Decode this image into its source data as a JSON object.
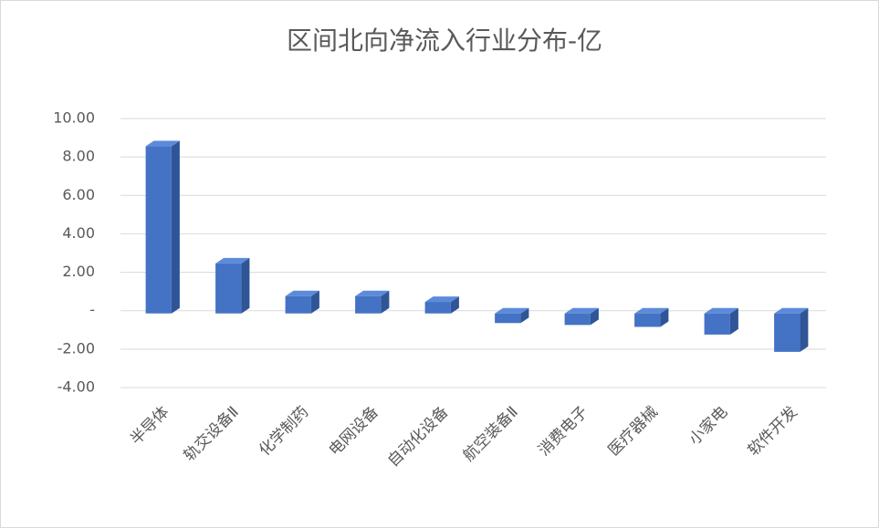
{
  "chart_data": {
    "type": "bar3d",
    "title": "区间北向净流入行业分布-亿",
    "categories": [
      "半导体",
      "轨交设备Ⅱ",
      "化学制药",
      "电网设备",
      "自动化设备",
      "航空装备Ⅱ",
      "消费电子",
      "医疗器械",
      "小家电",
      "软件开发"
    ],
    "values": [
      8.7,
      2.6,
      0.9,
      0.9,
      0.6,
      -0.5,
      -0.6,
      -0.7,
      -1.1,
      -2.0
    ],
    "color": "#4472c4",
    "ylim": [
      -4,
      10
    ],
    "yticks": [
      {
        "value": -4,
        "label": "-4.00"
      },
      {
        "value": -2,
        "label": "-2.00"
      },
      {
        "value": 0,
        "label": "-"
      },
      {
        "value": 2,
        "label": "2.00"
      },
      {
        "value": 4,
        "label": "4.00"
      },
      {
        "value": 6,
        "label": "6.00"
      },
      {
        "value": 8,
        "label": "8.00"
      },
      {
        "value": 10,
        "label": "10.00"
      }
    ],
    "grid": true
  }
}
